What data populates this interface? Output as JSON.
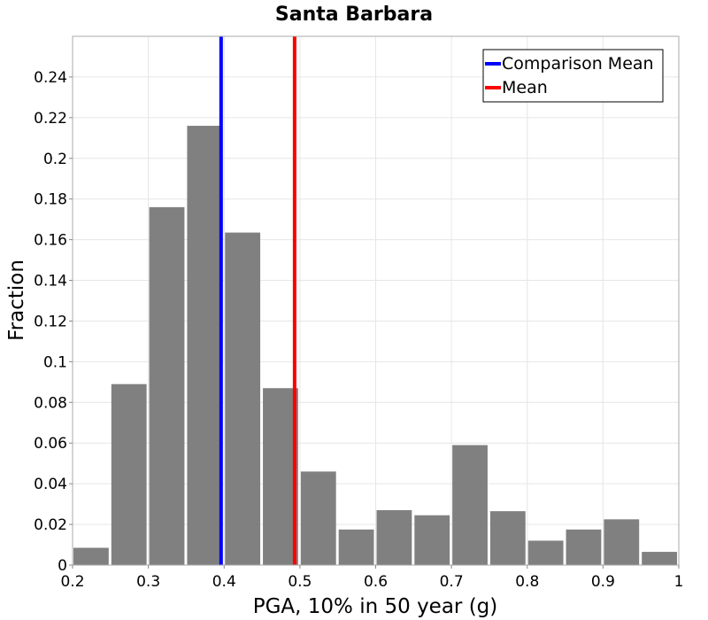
{
  "chart_data": {
    "type": "bar",
    "title": "Santa Barbara",
    "xlabel": "PGA, 10% in 50 year (g)",
    "ylabel": "Fraction",
    "xlim": [
      0.2,
      1.0
    ],
    "ylim": [
      0,
      0.26
    ],
    "grid": true,
    "legend_placement": "top-right",
    "bin_width": 0.05,
    "bins": [
      {
        "x_start": 0.2,
        "value": 0.0085
      },
      {
        "x_start": 0.25,
        "value": 0.089
      },
      {
        "x_start": 0.3,
        "value": 0.176
      },
      {
        "x_start": 0.35,
        "value": 0.216
      },
      {
        "x_start": 0.4,
        "value": 0.1635
      },
      {
        "x_start": 0.45,
        "value": 0.087
      },
      {
        "x_start": 0.5,
        "value": 0.046
      },
      {
        "x_start": 0.55,
        "value": 0.0175
      },
      {
        "x_start": 0.6,
        "value": 0.027
      },
      {
        "x_start": 0.65,
        "value": 0.0245
      },
      {
        "x_start": 0.7,
        "value": 0.059
      },
      {
        "x_start": 0.75,
        "value": 0.0265
      },
      {
        "x_start": 0.8,
        "value": 0.012
      },
      {
        "x_start": 0.85,
        "value": 0.0175
      },
      {
        "x_start": 0.9,
        "value": 0.0225
      },
      {
        "x_start": 0.95,
        "value": 0.0065
      }
    ],
    "bar_color": "#808080",
    "x_ticks": [
      0.2,
      0.3,
      0.4,
      0.5,
      0.6,
      0.7,
      0.8,
      0.9,
      1.0
    ],
    "x_tick_labels": [
      "0.2",
      "0.3",
      "0.4",
      "0.5",
      "0.6",
      "0.7",
      "0.8",
      "0.9",
      "1"
    ],
    "y_ticks": [
      0,
      0.02,
      0.04,
      0.06,
      0.08,
      0.1,
      0.12,
      0.14,
      0.16,
      0.18,
      0.2,
      0.22,
      0.24
    ],
    "y_tick_labels": [
      "0",
      "0.02",
      "0.04",
      "0.06",
      "0.08",
      "0.1",
      "0.12",
      "0.14",
      "0.16",
      "0.18",
      "0.2",
      "0.22",
      "0.24"
    ],
    "reference_lines": [
      {
        "name": "Comparison Mean",
        "x": 0.396,
        "color": "#0000ff"
      },
      {
        "name": "Mean",
        "x": 0.493,
        "color": "#ff0000"
      }
    ]
  }
}
